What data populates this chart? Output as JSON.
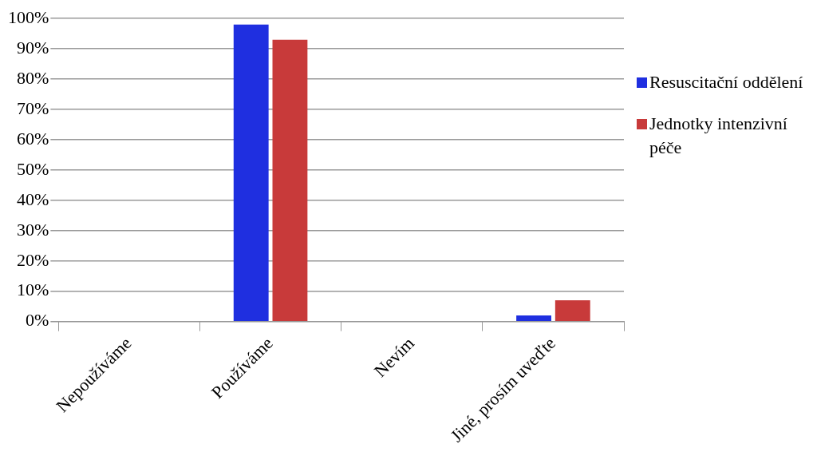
{
  "chart_data": {
    "type": "bar",
    "categories": [
      "Nepoužíváme",
      "Používáme",
      "Nevím",
      "Jiné, prosím uveďte"
    ],
    "series": [
      {
        "name": "Resuscitační oddělení",
        "color": "#1f2fe0",
        "values": [
          0,
          98,
          0,
          2
        ]
      },
      {
        "name": "Jednotky intenzivní péče",
        "color": "#c83a3a",
        "values": [
          0,
          93,
          0,
          7
        ]
      }
    ],
    "ylim": [
      0,
      100
    ],
    "yticks": [
      {
        "value": 0,
        "label": "0%"
      },
      {
        "value": 10,
        "label": "10%"
      },
      {
        "value": 20,
        "label": "20%"
      },
      {
        "value": 30,
        "label": "30%"
      },
      {
        "value": 40,
        "label": "40%"
      },
      {
        "value": 50,
        "label": "50%"
      },
      {
        "value": 60,
        "label": "60%"
      },
      {
        "value": 70,
        "label": "70%"
      },
      {
        "value": 80,
        "label": "80%"
      },
      {
        "value": 90,
        "label": "90%"
      },
      {
        "value": 100,
        "label": "100%"
      }
    ],
    "grid": "y",
    "legend": "right"
  }
}
